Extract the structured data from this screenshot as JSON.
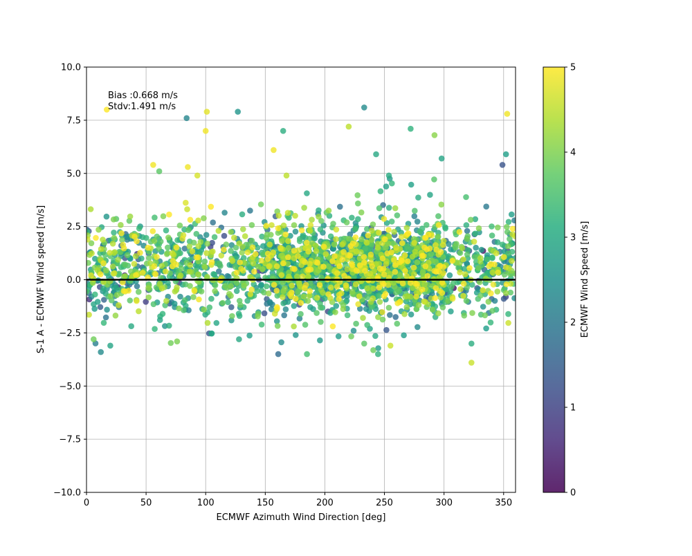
{
  "chart_data": {
    "type": "scatter",
    "xlabel": "ECMWF Azimuth Wind Direction [deg]",
    "ylabel": "S-1 A - ECMWF Wind speed [m/s]",
    "xlim": [
      0,
      360
    ],
    "ylim": [
      -10,
      10
    ],
    "x_ticks": [
      "0",
      "50",
      "100",
      "150",
      "200",
      "250",
      "300",
      "350"
    ],
    "y_ticks": [
      "−10.0",
      "−7.5",
      "−5.0",
      "−2.5",
      "0.0",
      "2.5",
      "5.0",
      "7.5",
      "10.0"
    ],
    "grid": true,
    "reference_line_y": 0,
    "annotation_bias": "Bias :0.668 m/s",
    "annotation_stdv": "Stdv:1.491 m/s",
    "colorbar": {
      "label": "ECMWF Wind Speed [m/s]",
      "range": [
        0,
        5
      ],
      "ticks": [
        "0",
        "1",
        "2",
        "3",
        "4",
        "5"
      ],
      "colormap": "viridis"
    },
    "notable_points": [
      {
        "x": 17,
        "y": 8.0,
        "c": 5.0
      },
      {
        "x": 84,
        "y": 7.6,
        "c": 2.3
      },
      {
        "x": 101,
        "y": 7.9,
        "c": 4.8
      },
      {
        "x": 100,
        "y": 7.0,
        "c": 4.9
      },
      {
        "x": 127,
        "y": 7.9,
        "c": 2.6
      },
      {
        "x": 165,
        "y": 7.0,
        "c": 3.1
      },
      {
        "x": 157,
        "y": 6.1,
        "c": 4.9
      },
      {
        "x": 233,
        "y": 8.1,
        "c": 2.4
      },
      {
        "x": 220,
        "y": 7.2,
        "c": 4.5
      },
      {
        "x": 272,
        "y": 7.1,
        "c": 3.2
      },
      {
        "x": 292,
        "y": 6.8,
        "c": 4.1
      },
      {
        "x": 353,
        "y": 7.8,
        "c": 4.9
      },
      {
        "x": 298,
        "y": 5.7,
        "c": 2.9
      },
      {
        "x": 352,
        "y": 5.9,
        "c": 2.8
      },
      {
        "x": 349,
        "y": 5.4,
        "c": 1.3
      },
      {
        "x": 56,
        "y": 5.4,
        "c": 4.9
      },
      {
        "x": 61,
        "y": 5.1,
        "c": 3.7
      },
      {
        "x": 85,
        "y": 5.3,
        "c": 4.9
      },
      {
        "x": 93,
        "y": 4.9,
        "c": 4.7
      },
      {
        "x": 243,
        "y": 5.9,
        "c": 3.0
      },
      {
        "x": 323,
        "y": -3.9,
        "c": 4.6
      },
      {
        "x": 323,
        "y": -3.0,
        "c": 3.1
      },
      {
        "x": 12,
        "y": -3.4,
        "c": 2.4
      },
      {
        "x": 20,
        "y": -3.1,
        "c": 2.9
      },
      {
        "x": 185,
        "y": -3.5,
        "c": 3.5
      },
      {
        "x": 233,
        "y": -3.0,
        "c": 3.7
      },
      {
        "x": 255,
        "y": -3.1,
        "c": 4.6
      },
      {
        "x": 76,
        "y": -2.9,
        "c": 4.0
      },
      {
        "x": 128,
        "y": -2.8,
        "c": 3.0
      },
      {
        "x": 6,
        "y": -2.8,
        "c": 3.9
      }
    ]
  }
}
